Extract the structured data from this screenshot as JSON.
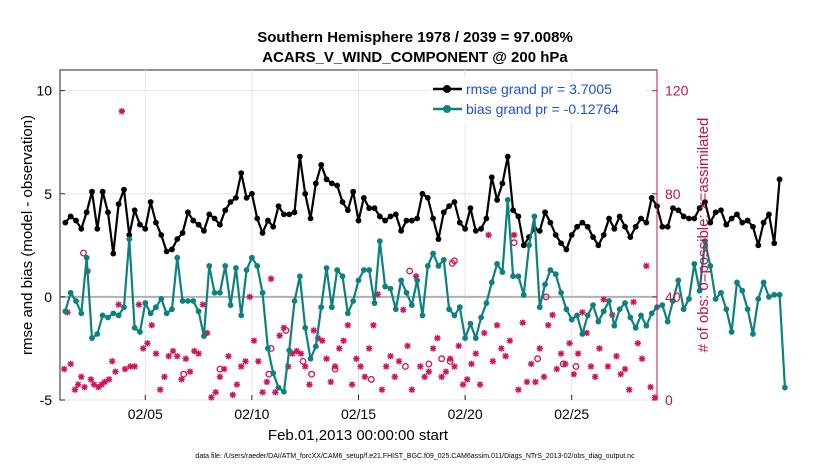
{
  "chart_data": {
    "type": "line",
    "title_line1": "Southern Hemisphere 1978 / 2039 = 97.008%",
    "title_line2": "ACARS_V_WIND_COMPONENT @ 200 hPa",
    "xlabel": "Feb.01,2013 00:00:00 start",
    "ylabel": "rmse and bias (model - observation)",
    "ylabel_right": "# of obs: o=possible; ×=assimilated",
    "footer": "data file: /Users/raeder/DAI/ATM_forcXX/CAM6_setup/f.e21.FHIST_BGC.f09_025.CAM6assim.011/Diags_NTrS_2013-02/obs_diag_output.nc",
    "xlim": [
      1.0,
      29.0
    ],
    "ylim": [
      -5,
      11
    ],
    "ylim_right": [
      0,
      128
    ],
    "x_ticks": [
      5,
      10,
      15,
      20,
      25
    ],
    "x_tick_labels": [
      "02/05",
      "02/10",
      "02/15",
      "02/20",
      "02/25"
    ],
    "y_ticks": [
      -5,
      0,
      5,
      10
    ],
    "y_tick_labels": [
      "-5",
      "0",
      "5",
      "10"
    ],
    "y_right_ticks": [
      0,
      40,
      80,
      120
    ],
    "y_right_tick_labels": [
      "0",
      "40",
      "80",
      "120"
    ],
    "x_start": 1.25,
    "x_step": 0.25,
    "series": [
      {
        "name": "rmse",
        "legend": "rmse grand pr = 3.7005",
        "color": "#000000",
        "values": [
          3.6,
          3.9,
          3.7,
          3.3,
          4.1,
          5.1,
          3.3,
          5.1,
          4.1,
          2.1,
          4.5,
          5.2,
          3.0,
          4.2,
          3.5,
          3.3,
          4.6,
          3.6,
          3.0,
          2.2,
          2.3,
          2.8,
          3.1,
          4.1,
          3.7,
          3.5,
          3.2,
          4.0,
          3.8,
          3.5,
          4.2,
          4.6,
          4.8,
          6.0,
          4.8,
          5.0,
          3.8,
          3.1,
          3.7,
          3.4,
          4.4,
          4.0,
          4.0,
          4.1,
          6.8,
          5.0,
          3.8,
          5.5,
          6.4,
          5.7,
          5.5,
          5.4,
          4.6,
          4.2,
          5.1,
          3.7,
          4.8,
          4.3,
          4.3,
          3.9,
          3.7,
          3.9,
          4.0,
          3.2,
          3.7,
          3.7,
          3.8,
          5.0,
          4.8,
          3.8,
          2.8,
          4.1,
          4.4,
          4.6,
          3.6,
          3.3,
          4.3,
          3.2,
          3.3,
          3.8,
          5.8,
          4.7,
          5.5,
          6.8,
          4.2,
          3.9,
          2.5,
          2.9,
          3.3,
          3.2,
          4.1,
          3.6,
          3.0,
          2.6,
          2.3,
          3.0,
          3.4,
          3.6,
          3.4,
          2.9,
          2.5,
          3.0,
          3.8,
          3.3,
          3.9,
          3.4,
          2.9,
          3.4,
          3.8,
          3.6,
          4.8,
          4.4,
          3.4,
          3.4,
          4.3,
          4.2,
          3.9,
          3.8,
          3.8,
          4.3,
          4.6,
          3.6,
          4.1,
          4.2,
          3.5,
          3.8,
          4.0,
          3.6,
          3.7,
          3.4,
          2.5,
          3.6,
          4.0,
          2.6,
          5.7
        ]
      },
      {
        "name": "bias",
        "legend": "bias grand pr = -0.12764",
        "color": "#0e8080",
        "values": [
          -0.7,
          0.2,
          -0.2,
          -0.8,
          1.9,
          -2.0,
          -1.8,
          -0.9,
          -1.0,
          -0.8,
          -0.9,
          -0.5,
          2.8,
          -1.5,
          -1.7,
          -0.3,
          -0.8,
          -0.5,
          -0.1,
          -0.8,
          -0.6,
          1.9,
          -0.2,
          -0.2,
          -0.2,
          -0.7,
          -1.9,
          1.5,
          0.2,
          0.2,
          1.5,
          -0.4,
          1.4,
          -0.9,
          1.3,
          1.9,
          1.5,
          0.2,
          -2.5,
          -3.7,
          -4.4,
          -4.6,
          -2.6,
          -0.2,
          1.0,
          -1.5,
          -3.0,
          -2.4,
          -0.5,
          1.4,
          -0.5,
          1.3,
          1.0,
          -0.8,
          -0.2,
          0.8,
          1.3,
          1.3,
          -0.3,
          2.7,
          0.5,
          0.4,
          -0.6,
          0.8,
          0.2,
          -0.4,
          0.8,
          -0.9,
          1.5,
          2.1,
          1.5,
          1.8,
          -0.6,
          -0.9,
          -0.5,
          -2.0,
          -1.3,
          -2.0,
          -1.0,
          -0.3,
          0.7,
          1.6,
          1.2,
          4.7,
          1.0,
          1.0,
          0.1,
          2.5,
          3.9,
          -0.5,
          0.6,
          1.3,
          1.1,
          0.2,
          -0.6,
          -1.1,
          -0.9,
          -1.8,
          -0.9,
          -0.4,
          -1.2,
          -0.7,
          -0.2,
          -1.4,
          -0.6,
          -0.3,
          -1.0,
          -1.5,
          -0.9,
          -1.4,
          -0.8,
          -0.5,
          -0.4,
          -1.2,
          -0.2,
          0.8,
          -0.6,
          -0.1,
          1.6,
          0.3,
          2.7,
          1.5,
          -0.1,
          0.2,
          -0.6,
          -1.7,
          0.7,
          0.3,
          -0.6,
          -1.8,
          -0.1,
          0.7,
          0.0,
          0.1,
          0.1,
          -4.4
        ]
      }
    ],
    "obs_possible": {
      "x": [
        2.1,
        6.8,
        8.5,
        10.8,
        10.9,
        11.6,
        12.4,
        12.8,
        13.9,
        15.6,
        17.2,
        17.4,
        18.3,
        18.9,
        19.3,
        19.4,
        19.5,
        22.3,
        23.4,
        23.8,
        24.6,
        25.2
      ],
      "values": [
        57,
        10,
        12,
        10,
        20,
        27,
        15,
        10,
        12,
        8,
        13,
        50,
        14,
        16,
        15,
        53,
        54,
        61,
        16,
        40,
        14,
        13
      ]
    },
    "obs_assimilated": {
      "x": [
        1.2,
        1.35,
        1.5,
        1.7,
        1.85,
        2.0,
        2.15,
        2.3,
        2.45,
        2.6,
        2.8,
        2.95,
        3.1,
        3.3,
        3.45,
        3.6,
        3.75,
        3.9,
        4.05,
        4.3,
        4.5,
        4.7,
        4.9,
        5.1,
        5.3,
        5.5,
        5.7,
        5.9,
        6.1,
        6.3,
        6.5,
        6.7,
        6.9,
        7.1,
        7.3,
        7.5,
        7.7,
        7.9,
        8.1,
        8.3,
        8.5,
        8.7,
        8.9,
        9.1,
        9.3,
        9.5,
        9.7,
        9.9,
        10.1,
        10.3,
        10.5,
        10.7,
        10.9,
        11.1,
        11.3,
        11.5,
        11.7,
        11.9,
        12.1,
        12.3,
        12.5,
        12.7,
        12.9,
        13.1,
        13.3,
        13.5,
        13.7,
        13.9,
        14.1,
        14.3,
        14.5,
        14.7,
        14.9,
        15.1,
        15.3,
        15.5,
        15.7,
        15.9,
        16.1,
        16.3,
        16.5,
        16.7,
        16.9,
        17.1,
        17.3,
        17.5,
        17.7,
        17.9,
        18.1,
        18.3,
        18.5,
        18.7,
        18.9,
        19.1,
        19.3,
        19.5,
        19.7,
        19.9,
        20.1,
        20.3,
        20.5,
        20.7,
        20.9,
        21.1,
        21.3,
        21.5,
        21.7,
        21.9,
        22.1,
        22.3,
        22.5,
        22.7,
        22.9,
        23.1,
        23.3,
        23.5,
        23.7,
        23.9,
        24.1,
        24.3,
        24.5,
        24.7,
        24.9,
        25.1,
        25.3,
        25.5,
        25.7,
        25.9,
        26.1,
        26.3,
        26.5,
        26.7,
        26.9,
        27.1,
        27.3,
        27.5,
        27.7,
        27.9,
        28.1,
        28.3,
        28.5,
        28.7,
        28.9
      ],
      "values": [
        12,
        34,
        14,
        4,
        6,
        9,
        5,
        50,
        8,
        6,
        5,
        6,
        7,
        8,
        15,
        11,
        37,
        112,
        12,
        13,
        13,
        37,
        20,
        22,
        29,
        18,
        4,
        9,
        17,
        19,
        17,
        8,
        16,
        11,
        19,
        18,
        37,
        26,
        1,
        3,
        9,
        12,
        17,
        2,
        6,
        13,
        15,
        40,
        23,
        15,
        3,
        7,
        47,
        3,
        25,
        28,
        13,
        18,
        19,
        18,
        13,
        6,
        27,
        24,
        23,
        16,
        7,
        13,
        20,
        23,
        29,
        6,
        16,
        13,
        9,
        20,
        29,
        41,
        4,
        13,
        17,
        9,
        15,
        35,
        21,
        4,
        48,
        13,
        9,
        11,
        20,
        24,
        9,
        11,
        16,
        13,
        21,
        6,
        8,
        14,
        18,
        6,
        26,
        64,
        15,
        29,
        20,
        17,
        23,
        64,
        4,
        30,
        7,
        14,
        7,
        20,
        9,
        29,
        33,
        12,
        18,
        14,
        22,
        10,
        18,
        34,
        26,
        13,
        9,
        20,
        39,
        13,
        33,
        17,
        10,
        12,
        4,
        38,
        22,
        16,
        52,
        5,
        1
      ]
    }
  }
}
